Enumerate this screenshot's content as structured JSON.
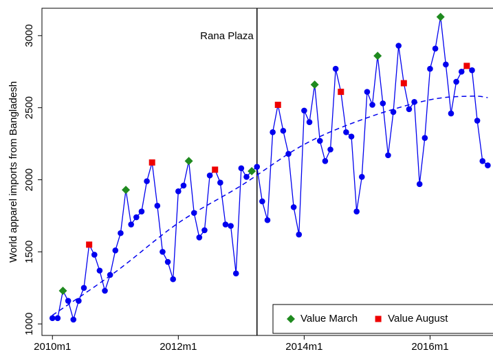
{
  "chart_data": {
    "type": "line",
    "ylabel": "World apparel imports from Bangladesh",
    "x": [
      600,
      601,
      602,
      603,
      604,
      605,
      606,
      607,
      608,
      609,
      610,
      611,
      612,
      613,
      614,
      615,
      616,
      617,
      618,
      619,
      620,
      621,
      622,
      623,
      624,
      625,
      626,
      627,
      628,
      629,
      630,
      631,
      632,
      633,
      634,
      635,
      636,
      637,
      638,
      639,
      640,
      641,
      642,
      643,
      644,
      645,
      646,
      647,
      648,
      649,
      650,
      651,
      652,
      653,
      654,
      655,
      656,
      657,
      658,
      659,
      660,
      661,
      662,
      663,
      664,
      665,
      666,
      667,
      668,
      669,
      670,
      671,
      672,
      673,
      674,
      675,
      676,
      677,
      678,
      679,
      680,
      681,
      682,
      683
    ],
    "values": [
      1040,
      1040,
      1230,
      1160,
      1030,
      1160,
      1250,
      1550,
      1480,
      1370,
      1230,
      1340,
      1510,
      1630,
      1930,
      1690,
      1740,
      1780,
      1990,
      2120,
      1820,
      1500,
      1430,
      1310,
      1920,
      1960,
      2130,
      1770,
      1600,
      1650,
      2030,
      2070,
      1980,
      1690,
      1680,
      1350,
      2080,
      2020,
      2060,
      2090,
      1850,
      1720,
      2330,
      2520,
      2340,
      2180,
      1810,
      1620,
      2480,
      2400,
      2660,
      2270,
      2130,
      2210,
      2770,
      2610,
      2330,
      2300,
      1780,
      2020,
      2610,
      2520,
      2860,
      2530,
      2170,
      2470,
      2930,
      2670,
      2490,
      2540,
      1970,
      2290,
      2770,
      2910,
      3130,
      2800,
      2460,
      2680,
      2750,
      2790,
      2760,
      2410,
      2130,
      2100
    ],
    "color": "#0000ee",
    "markers": [
      {
        "name": "Value March",
        "month": 3,
        "color": "#1f8a1f",
        "shape": "diamond"
      },
      {
        "name": "Value August",
        "month": 8,
        "color": "#ee0000",
        "shape": "square"
      }
    ],
    "fit": {
      "x": [
        600,
        612,
        624,
        636,
        648,
        660,
        672,
        680,
        683
      ],
      "values": [
        1060,
        1360,
        1700,
        1960,
        2245,
        2430,
        2555,
        2580,
        2570
      ],
      "color": "#0000ee",
      "style": "dashed"
    },
    "vline": {
      "x": 639,
      "label": "Rana Plaza"
    },
    "xlim": [
      598,
      684
    ],
    "ylim": [
      920,
      3190
    ],
    "xticks": [
      {
        "value": 600,
        "label": "2010m1"
      },
      {
        "value": 624,
        "label": "2012m1"
      },
      {
        "value": 648,
        "label": "2014m1"
      },
      {
        "value": 672,
        "label": "2016m1"
      }
    ],
    "yticks": [
      1000,
      1500,
      2000,
      2500,
      3000
    ],
    "legend": "bottom-right"
  }
}
